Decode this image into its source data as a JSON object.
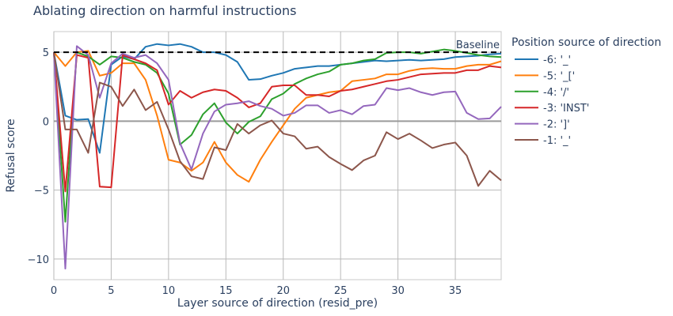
{
  "chart_data": {
    "type": "line",
    "title": "Ablating direction on harmful instructions",
    "xlabel": "Layer source of direction (resid_pre)",
    "ylabel": "Refusal score",
    "xlim": [
      0,
      39
    ],
    "ylim": [
      -11.5,
      6.5
    ],
    "xticks": [
      0,
      5,
      10,
      15,
      20,
      25,
      30,
      35
    ],
    "yticks": [
      -10,
      -5,
      0,
      5
    ],
    "grid": true,
    "legend_title": "Position source of direction",
    "legend_position": "right",
    "baseline": {
      "label": "Baseline",
      "value": 5.0,
      "color": "#000000"
    },
    "x": [
      0,
      1,
      2,
      3,
      4,
      5,
      6,
      7,
      8,
      9,
      10,
      11,
      12,
      13,
      14,
      15,
      16,
      17,
      18,
      19,
      20,
      21,
      22,
      23,
      24,
      25,
      26,
      27,
      28,
      29,
      30,
      31,
      32,
      33,
      34,
      35,
      36,
      37,
      38,
      39
    ],
    "series": [
      {
        "name": "-6: '_'",
        "color": "#1f77b4",
        "values": [
          5.0,
          0.4,
          0.1,
          0.15,
          -2.3,
          4.1,
          4.7,
          4.5,
          5.4,
          5.6,
          5.5,
          5.6,
          5.4,
          5.0,
          5.0,
          4.8,
          4.3,
          3.0,
          3.05,
          3.3,
          3.5,
          3.8,
          3.9,
          4.0,
          4.0,
          4.1,
          4.2,
          4.3,
          4.4,
          4.35,
          4.4,
          4.45,
          4.4,
          4.45,
          4.5,
          4.65,
          4.7,
          4.75,
          4.85,
          4.9
        ]
      },
      {
        "name": "-5: '_['",
        "color": "#ff7f0e",
        "values": [
          5.0,
          4.0,
          5.0,
          5.1,
          3.3,
          3.5,
          4.2,
          4.2,
          3.0,
          0.4,
          -2.8,
          -3.0,
          -3.6,
          -3.0,
          -1.5,
          -3.0,
          -3.9,
          -4.4,
          -2.8,
          -1.5,
          -0.3,
          0.9,
          1.7,
          1.9,
          2.1,
          2.2,
          2.9,
          3.0,
          3.1,
          3.4,
          3.4,
          3.65,
          3.8,
          3.85,
          3.8,
          3.8,
          4.0,
          4.1,
          4.1,
          4.35
        ]
      },
      {
        "name": "-4: '/'",
        "color": "#2ca02c",
        "values": [
          5.0,
          -7.3,
          5.0,
          4.7,
          4.1,
          4.7,
          4.6,
          4.3,
          4.1,
          3.5,
          2.0,
          -1.7,
          -1.0,
          0.5,
          1.3,
          -0.1,
          -0.9,
          -0.05,
          0.35,
          1.6,
          2.0,
          2.7,
          3.1,
          3.4,
          3.6,
          4.1,
          4.2,
          4.4,
          4.5,
          4.95,
          5.0,
          5.0,
          4.9,
          5.05,
          5.2,
          5.1,
          4.95,
          4.8,
          4.7,
          4.65
        ]
      },
      {
        "name": "-3: 'INST'",
        "color": "#d62728",
        "values": [
          5.0,
          -5.1,
          4.8,
          4.6,
          -4.75,
          -4.8,
          4.8,
          4.5,
          4.2,
          3.7,
          1.2,
          2.2,
          1.7,
          2.1,
          2.3,
          2.2,
          1.7,
          1.0,
          1.3,
          2.5,
          2.6,
          2.6,
          1.9,
          1.9,
          1.8,
          2.2,
          2.3,
          2.5,
          2.7,
          2.9,
          3.0,
          3.2,
          3.4,
          3.45,
          3.5,
          3.5,
          3.7,
          3.7,
          4.0,
          3.9
        ]
      },
      {
        "name": "-2: ']'",
        "color": "#9467bd",
        "values": [
          5.0,
          -10.7,
          5.45,
          4.8,
          1.7,
          4.2,
          4.9,
          4.6,
          4.8,
          4.2,
          3.0,
          -1.6,
          -3.5,
          -0.9,
          0.7,
          1.2,
          1.3,
          1.45,
          1.1,
          0.9,
          0.4,
          0.6,
          1.15,
          1.15,
          0.6,
          0.8,
          0.5,
          1.1,
          1.2,
          2.4,
          2.25,
          2.4,
          2.1,
          1.9,
          2.1,
          2.15,
          0.6,
          0.15,
          0.2,
          1.05
        ]
      },
      {
        "name": "-1: '_'",
        "color": "#8c564b",
        "values": [
          5.0,
          -0.6,
          -0.6,
          -2.3,
          2.8,
          2.5,
          1.1,
          2.3,
          0.8,
          1.4,
          -0.6,
          -2.9,
          -4.0,
          -4.2,
          -1.9,
          -2.1,
          -0.2,
          -0.9,
          -0.3,
          0.05,
          -0.9,
          -1.1,
          -2.0,
          -1.85,
          -2.6,
          -3.1,
          -3.55,
          -2.85,
          -2.5,
          -0.8,
          -1.3,
          -0.9,
          -1.4,
          -1.95,
          -1.7,
          -1.55,
          -2.5,
          -4.7,
          -3.6,
          -4.3
        ]
      }
    ]
  }
}
